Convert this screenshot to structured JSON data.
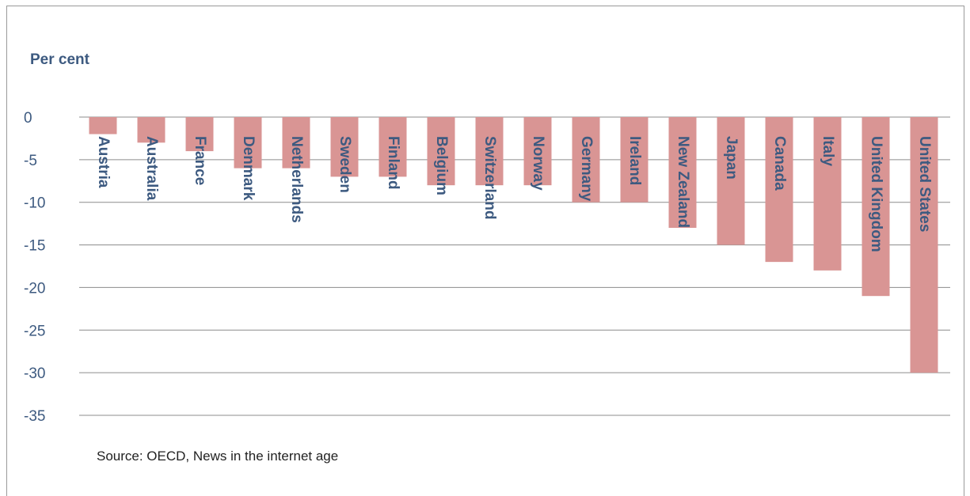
{
  "chart_data": {
    "type": "bar",
    "ylabel": "Per cent",
    "categories": [
      "Austria",
      "Australia",
      "France",
      "Denmark",
      "Netherlands",
      "Sweden",
      "Finland",
      "Belgium",
      "Switzerland",
      "Norway",
      "Germany",
      "Ireland",
      "New Zealand",
      "Japan",
      "Canada",
      "Italy",
      "United Kingdom",
      "United States"
    ],
    "values": [
      -2,
      -3,
      -4,
      -6,
      -6,
      -7,
      -7,
      -8,
      -8,
      -8,
      -10,
      -10,
      -13,
      -15,
      -17,
      -18,
      -21,
      -30
    ],
    "ylim": [
      -35,
      0
    ],
    "yticks": [
      0,
      -5,
      -10,
      -15,
      -20,
      -25,
      -30,
      -35
    ],
    "grid": true,
    "source": "Source: OECD, News in the internet age",
    "colors": {
      "bar": "#d99594",
      "text": "#3d5a80",
      "grid": "#8c8c8c"
    }
  }
}
